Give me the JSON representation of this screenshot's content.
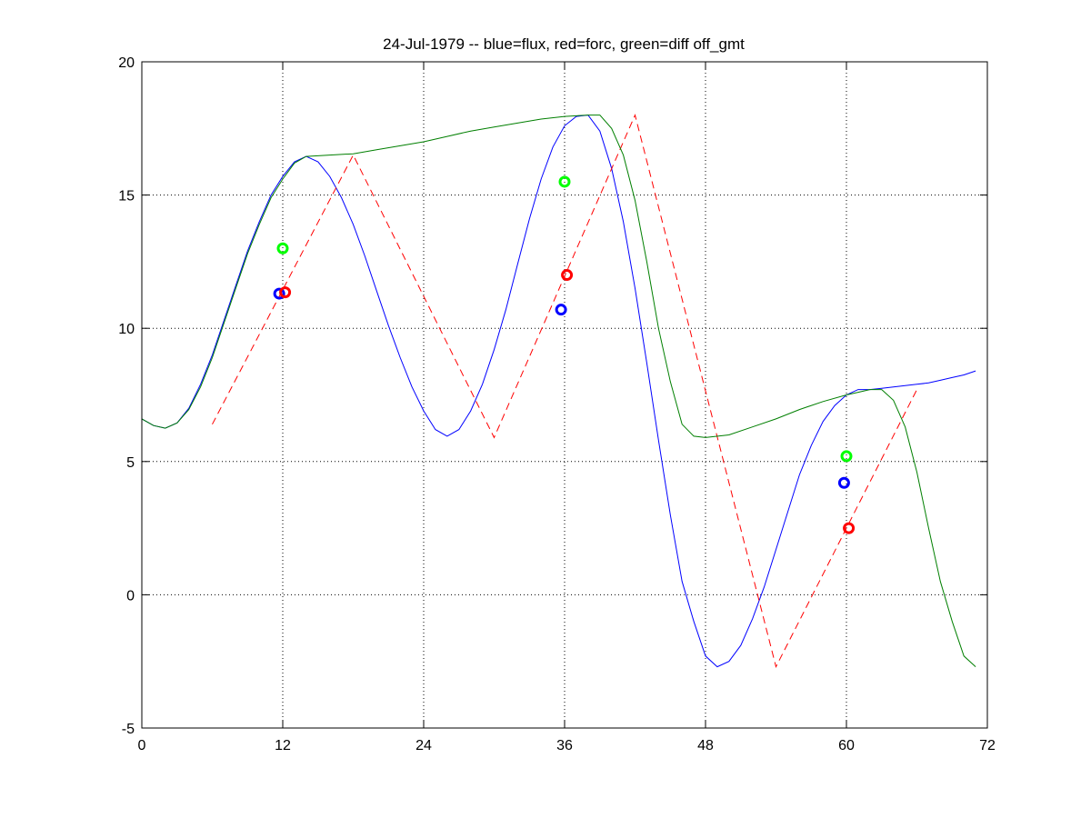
{
  "chart_data": {
    "type": "line",
    "title": "24-Jul-1979 -- blue=flux, red=forc, green=diff off_gmt",
    "xlabel": "",
    "ylabel": "",
    "xlim": [
      0,
      72
    ],
    "ylim": [
      -5,
      20
    ],
    "xticks": [
      0,
      12,
      24,
      36,
      48,
      60,
      72
    ],
    "yticks": [
      -5,
      0,
      5,
      10,
      15,
      20
    ],
    "grid": true,
    "series": [
      {
        "color": "#0000ff",
        "style": "solid",
        "points": [
          [
            0,
            6.6
          ],
          [
            1,
            6.35
          ],
          [
            2,
            6.25
          ],
          [
            3,
            6.45
          ],
          [
            4,
            7.0
          ],
          [
            5,
            7.9
          ],
          [
            6,
            9.0
          ],
          [
            7,
            10.3
          ],
          [
            8,
            11.6
          ],
          [
            9,
            12.9
          ],
          [
            10,
            14.0
          ],
          [
            11,
            15.0
          ],
          [
            12,
            15.7
          ],
          [
            13,
            16.25
          ],
          [
            14,
            16.45
          ],
          [
            15,
            16.25
          ],
          [
            16,
            15.7
          ],
          [
            17,
            14.9
          ],
          [
            18,
            13.9
          ],
          [
            19,
            12.7
          ],
          [
            20,
            11.4
          ],
          [
            21,
            10.1
          ],
          [
            22,
            8.9
          ],
          [
            23,
            7.8
          ],
          [
            24,
            6.9
          ],
          [
            25,
            6.2
          ],
          [
            26,
            5.95
          ],
          [
            27,
            6.2
          ],
          [
            28,
            6.9
          ],
          [
            29,
            7.9
          ],
          [
            30,
            9.2
          ],
          [
            31,
            10.7
          ],
          [
            32,
            12.4
          ],
          [
            33,
            14.1
          ],
          [
            34,
            15.6
          ],
          [
            35,
            16.8
          ],
          [
            36,
            17.6
          ],
          [
            37,
            17.95
          ],
          [
            38,
            18.0
          ],
          [
            39,
            17.4
          ],
          [
            40,
            16.0
          ],
          [
            41,
            14.0
          ],
          [
            42,
            11.5
          ],
          [
            43,
            8.7
          ],
          [
            44,
            5.8
          ],
          [
            45,
            3.0
          ],
          [
            46,
            0.5
          ],
          [
            47,
            -1.0
          ],
          [
            48,
            -2.3
          ],
          [
            49,
            -2.7
          ],
          [
            50,
            -2.5
          ],
          [
            51,
            -1.9
          ],
          [
            52,
            -0.9
          ],
          [
            53,
            0.3
          ],
          [
            54,
            1.7
          ],
          [
            55,
            3.1
          ],
          [
            56,
            4.5
          ],
          [
            57,
            5.6
          ],
          [
            58,
            6.5
          ],
          [
            59,
            7.1
          ],
          [
            60,
            7.5
          ],
          [
            61,
            7.7
          ],
          [
            62,
            7.7
          ],
          [
            63,
            7.75
          ],
          [
            64,
            7.8
          ],
          [
            65,
            7.85
          ],
          [
            66,
            7.9
          ],
          [
            67,
            7.95
          ],
          [
            68,
            8.05
          ],
          [
            69,
            8.15
          ],
          [
            70,
            8.25
          ],
          [
            71,
            8.4
          ]
        ]
      },
      {
        "color": "#ff0000",
        "style": "dashed",
        "points": [
          [
            6,
            6.4
          ],
          [
            18,
            16.5
          ],
          [
            30,
            5.9
          ],
          [
            42,
            18.0
          ],
          [
            54,
            -2.7
          ],
          [
            66,
            7.7
          ]
        ]
      },
      {
        "color": "#007f00",
        "style": "solid",
        "points": [
          [
            0,
            6.6
          ],
          [
            1,
            6.35
          ],
          [
            2,
            6.25
          ],
          [
            3,
            6.45
          ],
          [
            4,
            6.95
          ],
          [
            5,
            7.8
          ],
          [
            6,
            8.9
          ],
          [
            7,
            10.2
          ],
          [
            8,
            11.5
          ],
          [
            9,
            12.8
          ],
          [
            10,
            13.9
          ],
          [
            11,
            14.9
          ],
          [
            12,
            15.6
          ],
          [
            13,
            16.2
          ],
          [
            14,
            16.45
          ],
          [
            16,
            16.5
          ],
          [
            18,
            16.55
          ],
          [
            20,
            16.7
          ],
          [
            22,
            16.85
          ],
          [
            24,
            17.0
          ],
          [
            26,
            17.2
          ],
          [
            28,
            17.4
          ],
          [
            30,
            17.55
          ],
          [
            32,
            17.7
          ],
          [
            34,
            17.85
          ],
          [
            36,
            17.95
          ],
          [
            38,
            18.0
          ],
          [
            39,
            18.0
          ],
          [
            40,
            17.5
          ],
          [
            41,
            16.5
          ],
          [
            42,
            14.8
          ],
          [
            43,
            12.5
          ],
          [
            44,
            10.0
          ],
          [
            45,
            8.0
          ],
          [
            46,
            6.4
          ],
          [
            47,
            5.95
          ],
          [
            48,
            5.9
          ],
          [
            50,
            6.0
          ],
          [
            52,
            6.3
          ],
          [
            54,
            6.6
          ],
          [
            56,
            6.95
          ],
          [
            58,
            7.25
          ],
          [
            60,
            7.5
          ],
          [
            61,
            7.6
          ],
          [
            62,
            7.7
          ],
          [
            63,
            7.7
          ],
          [
            64,
            7.3
          ],
          [
            65,
            6.3
          ],
          [
            66,
            4.6
          ],
          [
            67,
            2.5
          ],
          [
            68,
            0.5
          ],
          [
            69,
            -1.0
          ],
          [
            70,
            -2.3
          ],
          [
            71,
            -2.7
          ]
        ]
      }
    ],
    "markers": [
      {
        "color": "#0000ff",
        "x": 11.7,
        "y": 11.3
      },
      {
        "color": "#ff0000",
        "x": 12.2,
        "y": 11.35
      },
      {
        "color": "#00ff00",
        "x": 12.0,
        "y": 13.0
      },
      {
        "color": "#0000ff",
        "x": 35.7,
        "y": 10.7
      },
      {
        "color": "#ff0000",
        "x": 36.2,
        "y": 12.0
      },
      {
        "color": "#00ff00",
        "x": 36.0,
        "y": 15.5
      },
      {
        "color": "#0000ff",
        "x": 59.8,
        "y": 4.2
      },
      {
        "color": "#ff0000",
        "x": 60.2,
        "y": 2.5
      },
      {
        "color": "#00ff00",
        "x": 60.0,
        "y": 5.2
      }
    ]
  }
}
